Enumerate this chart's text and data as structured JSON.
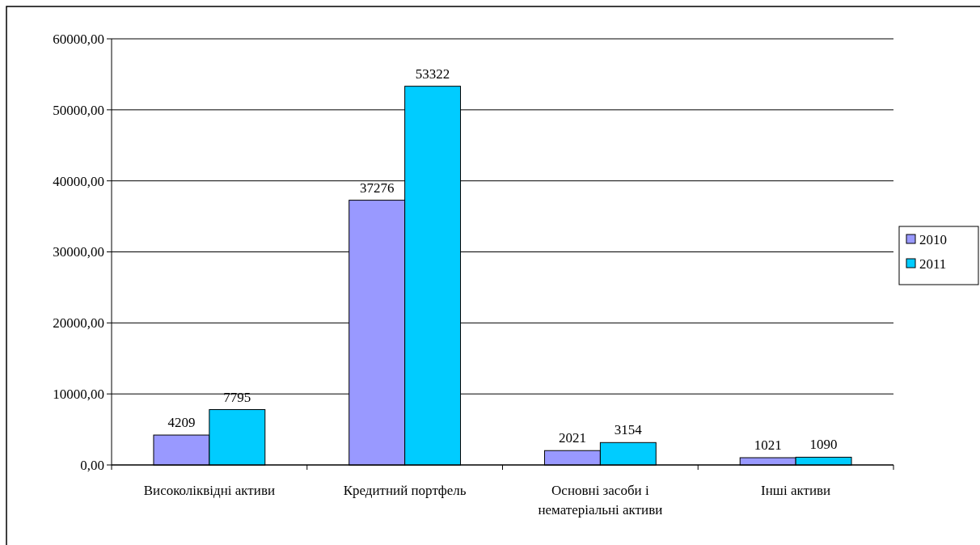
{
  "chart_data": {
    "type": "bar",
    "categories": [
      "Високоліквідні активи",
      "Кредитний портфель",
      "Основні засоби і нематеріальні активи",
      "Інші активи"
    ],
    "series": [
      {
        "name": "2010",
        "color": "#9999ff",
        "values": [
          4209,
          37276,
          2021,
          1021
        ]
      },
      {
        "name": "2011",
        "color": "#00ccff",
        "values": [
          7795,
          53322,
          3154,
          1090
        ]
      }
    ],
    "ylim": [
      0,
      60000
    ],
    "yticks": [
      {
        "value": 0,
        "label": "0,00"
      },
      {
        "value": 10000,
        "label": "10000,00"
      },
      {
        "value": 20000,
        "label": "20000,00"
      },
      {
        "value": 30000,
        "label": "30000,00"
      },
      {
        "value": 40000,
        "label": "40000,00"
      },
      {
        "value": 50000,
        "label": "50000,00"
      },
      {
        "value": 60000,
        "label": "60000,00"
      }
    ],
    "grid": "y",
    "legend": "right",
    "data_labels": true
  }
}
